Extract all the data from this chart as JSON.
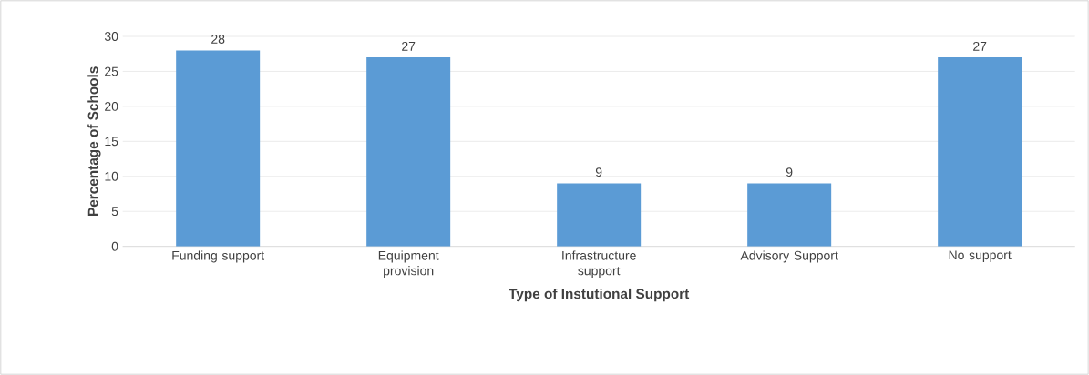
{
  "chart_data": {
    "type": "bar",
    "xlabel": "Type of Instutional Support",
    "ylabel": "Percentage of Schools",
    "categories": [
      "Funding support",
      "Equipment provision",
      "Infrastructure support",
      "Advisory Support",
      "No support"
    ],
    "values": [
      28,
      27,
      9,
      9,
      27
    ],
    "color": "#5b9bd5",
    "ylim": [
      0,
      30
    ],
    "yticks": [
      0,
      5,
      10,
      15,
      20,
      25,
      30
    ],
    "grid": "y",
    "data_labels": true
  }
}
